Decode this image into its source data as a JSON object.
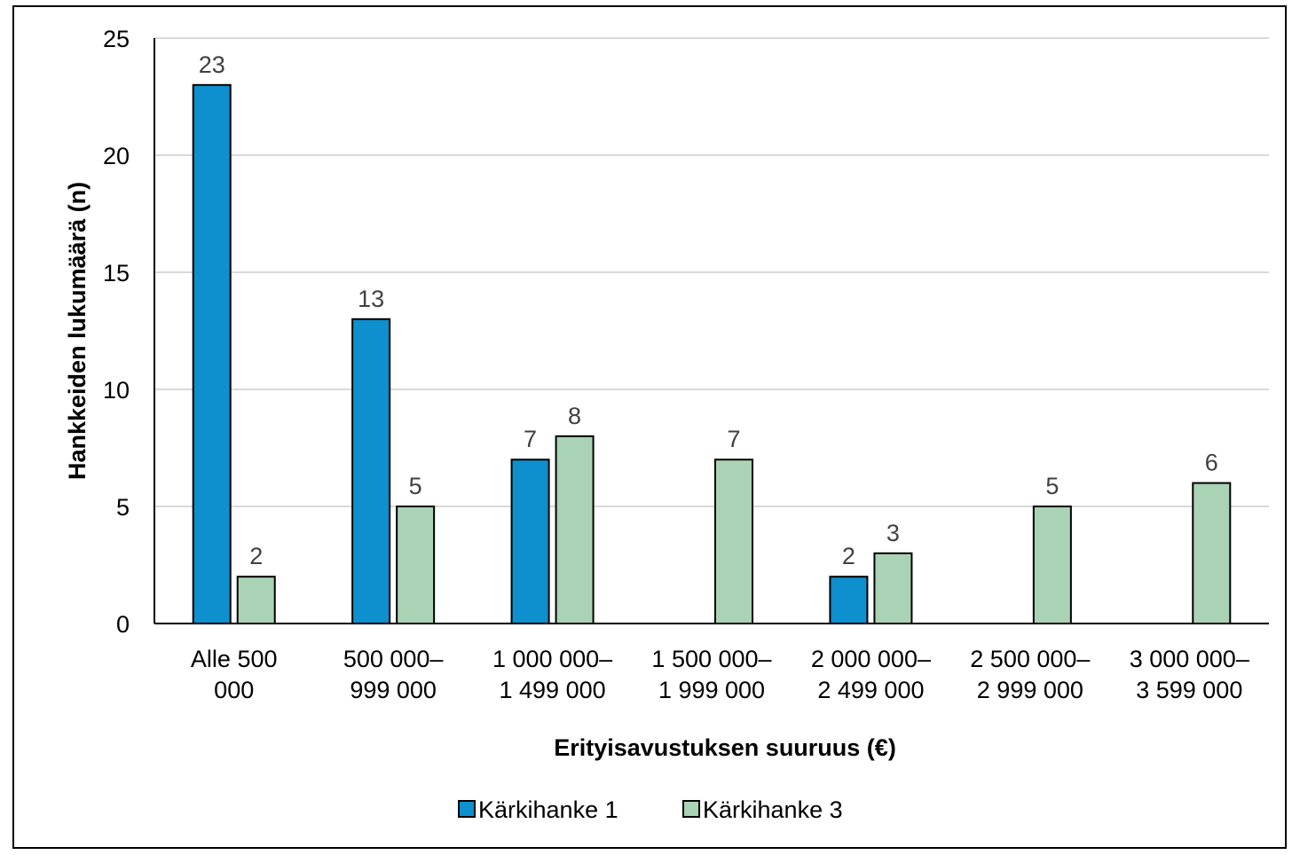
{
  "chart_data": {
    "type": "bar",
    "title": "",
    "xlabel": "Erityisavustuksen suuruus (€)",
    "ylabel": "Hankkeiden lukumäärä (n)",
    "ylim": [
      0,
      25
    ],
    "yticks": [
      "0",
      "5",
      "10",
      "15",
      "20",
      "25"
    ],
    "grid": true,
    "legend_position": "bottom",
    "categories": [
      [
        "Alle 500",
        "000"
      ],
      [
        "500 000–",
        "999 000"
      ],
      [
        "1 000 000–",
        "1 499 000"
      ],
      [
        "1 500 000–",
        "1 999 000"
      ],
      [
        "2 000 000–",
        "2 499 000"
      ],
      [
        "2 500 000–",
        "2 999 000"
      ],
      [
        "3 000 000–",
        "3 599 000"
      ]
    ],
    "series": [
      {
        "name": "Kärkihanke 1",
        "color": "#0e8fce",
        "values": [
          23,
          13,
          7,
          null,
          2,
          null,
          null
        ]
      },
      {
        "name": "Kärkihanke 3",
        "color": "#a9d3b4",
        "values": [
          2,
          5,
          8,
          7,
          3,
          5,
          6
        ]
      }
    ]
  }
}
